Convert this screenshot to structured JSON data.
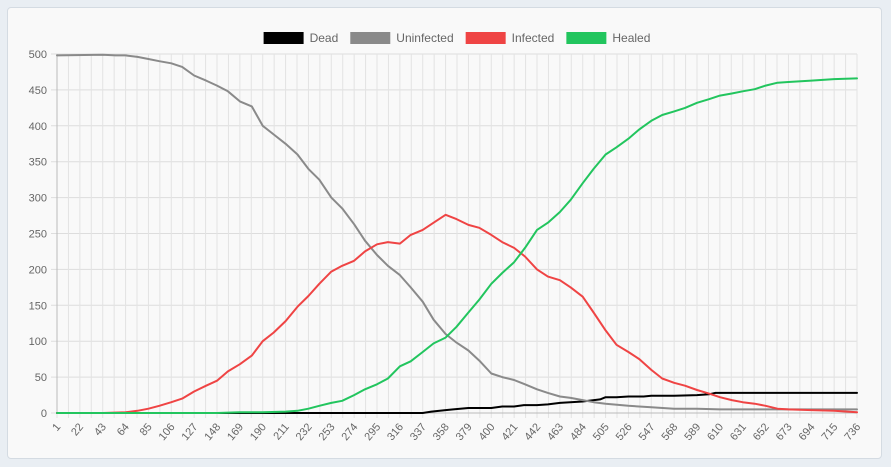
{
  "chart_data": {
    "type": "line",
    "xlabel": "",
    "ylabel": "",
    "ylim": [
      0,
      500
    ],
    "y_ticks": [
      0,
      50,
      100,
      150,
      200,
      250,
      300,
      350,
      400,
      450,
      500
    ],
    "x_range": [
      1,
      736
    ],
    "x_ticks": [
      "1",
      "22",
      "43",
      "64",
      "85",
      "106",
      "127",
      "148",
      "169",
      "190",
      "211",
      "232",
      "253",
      "274",
      "295",
      "316",
      "337",
      "358",
      "379",
      "400",
      "421",
      "442",
      "463",
      "484",
      "505",
      "526",
      "547",
      "568",
      "589",
      "610",
      "631",
      "652",
      "673",
      "694",
      "715",
      "736"
    ],
    "grid": true,
    "legend_position": "top",
    "series": [
      {
        "name": "Dead",
        "color": "#000000",
        "points": [
          [
            1,
            0
          ],
          [
            337,
            0
          ],
          [
            345,
            2
          ],
          [
            358,
            4
          ],
          [
            365,
            5
          ],
          [
            379,
            7
          ],
          [
            400,
            7
          ],
          [
            410,
            9
          ],
          [
            421,
            9
          ],
          [
            430,
            11
          ],
          [
            442,
            11
          ],
          [
            452,
            12
          ],
          [
            463,
            14
          ],
          [
            484,
            16
          ],
          [
            500,
            19
          ],
          [
            505,
            22
          ],
          [
            515,
            22
          ],
          [
            526,
            23
          ],
          [
            540,
            23
          ],
          [
            547,
            24
          ],
          [
            568,
            24
          ],
          [
            589,
            25
          ],
          [
            600,
            26
          ],
          [
            606,
            28
          ],
          [
            610,
            28
          ],
          [
            736,
            28
          ]
        ]
      },
      {
        "name": "Uninfected",
        "color": "#8a8a8a",
        "points": [
          [
            1,
            498
          ],
          [
            43,
            499
          ],
          [
            55,
            498
          ],
          [
            64,
            498
          ],
          [
            75,
            496
          ],
          [
            85,
            493
          ],
          [
            95,
            490
          ],
          [
            106,
            487
          ],
          [
            116,
            482
          ],
          [
            127,
            470
          ],
          [
            138,
            463
          ],
          [
            148,
            456
          ],
          [
            158,
            448
          ],
          [
            169,
            434
          ],
          [
            180,
            427
          ],
          [
            190,
            400
          ],
          [
            200,
            388
          ],
          [
            211,
            375
          ],
          [
            222,
            360
          ],
          [
            232,
            340
          ],
          [
            242,
            325
          ],
          [
            253,
            300
          ],
          [
            263,
            285
          ],
          [
            274,
            263
          ],
          [
            284,
            240
          ],
          [
            295,
            220
          ],
          [
            305,
            205
          ],
          [
            316,
            192
          ],
          [
            326,
            175
          ],
          [
            337,
            155
          ],
          [
            347,
            130
          ],
          [
            358,
            110
          ],
          [
            368,
            98
          ],
          [
            379,
            87
          ],
          [
            389,
            73
          ],
          [
            400,
            55
          ],
          [
            410,
            50
          ],
          [
            421,
            46
          ],
          [
            431,
            40
          ],
          [
            442,
            33
          ],
          [
            452,
            28
          ],
          [
            463,
            23
          ],
          [
            473,
            21
          ],
          [
            484,
            18
          ],
          [
            494,
            15
          ],
          [
            505,
            13
          ],
          [
            526,
            10
          ],
          [
            547,
            8
          ],
          [
            568,
            6
          ],
          [
            589,
            6
          ],
          [
            610,
            5
          ],
          [
            736,
            5
          ]
        ]
      },
      {
        "name": "Infected",
        "color": "#ef4444",
        "points": [
          [
            1,
            0
          ],
          [
            43,
            0
          ],
          [
            64,
            1
          ],
          [
            75,
            3
          ],
          [
            85,
            6
          ],
          [
            95,
            10
          ],
          [
            106,
            15
          ],
          [
            116,
            20
          ],
          [
            127,
            30
          ],
          [
            138,
            38
          ],
          [
            148,
            45
          ],
          [
            158,
            58
          ],
          [
            169,
            68
          ],
          [
            180,
            80
          ],
          [
            190,
            100
          ],
          [
            200,
            112
          ],
          [
            211,
            128
          ],
          [
            222,
            148
          ],
          [
            232,
            163
          ],
          [
            242,
            180
          ],
          [
            253,
            197
          ],
          [
            263,
            205
          ],
          [
            274,
            212
          ],
          [
            284,
            225
          ],
          [
            295,
            235
          ],
          [
            305,
            238
          ],
          [
            316,
            236
          ],
          [
            326,
            248
          ],
          [
            337,
            255
          ],
          [
            347,
            265
          ],
          [
            358,
            276
          ],
          [
            368,
            270
          ],
          [
            379,
            262
          ],
          [
            389,
            258
          ],
          [
            400,
            248
          ],
          [
            410,
            238
          ],
          [
            421,
            230
          ],
          [
            431,
            218
          ],
          [
            442,
            200
          ],
          [
            452,
            190
          ],
          [
            463,
            185
          ],
          [
            473,
            175
          ],
          [
            484,
            162
          ],
          [
            494,
            140
          ],
          [
            505,
            115
          ],
          [
            515,
            95
          ],
          [
            526,
            85
          ],
          [
            536,
            75
          ],
          [
            547,
            60
          ],
          [
            557,
            48
          ],
          [
            568,
            42
          ],
          [
            578,
            38
          ],
          [
            589,
            32
          ],
          [
            600,
            27
          ],
          [
            610,
            22
          ],
          [
            621,
            18
          ],
          [
            631,
            15
          ],
          [
            642,
            13
          ],
          [
            652,
            10
          ],
          [
            663,
            6
          ],
          [
            673,
            5
          ],
          [
            694,
            4
          ],
          [
            715,
            3
          ],
          [
            736,
            1
          ]
        ]
      },
      {
        "name": "Healed",
        "color": "#22c55e",
        "points": [
          [
            1,
            0
          ],
          [
            148,
            0
          ],
          [
            169,
            1
          ],
          [
            190,
            1
          ],
          [
            211,
            2
          ],
          [
            222,
            3
          ],
          [
            232,
            6
          ],
          [
            242,
            10
          ],
          [
            253,
            14
          ],
          [
            263,
            17
          ],
          [
            274,
            25
          ],
          [
            284,
            33
          ],
          [
            295,
            40
          ],
          [
            305,
            48
          ],
          [
            316,
            65
          ],
          [
            326,
            72
          ],
          [
            337,
            85
          ],
          [
            347,
            97
          ],
          [
            358,
            105
          ],
          [
            368,
            120
          ],
          [
            379,
            140
          ],
          [
            389,
            158
          ],
          [
            400,
            180
          ],
          [
            410,
            195
          ],
          [
            421,
            210
          ],
          [
            431,
            230
          ],
          [
            442,
            255
          ],
          [
            452,
            265
          ],
          [
            463,
            280
          ],
          [
            473,
            297
          ],
          [
            484,
            320
          ],
          [
            494,
            340
          ],
          [
            505,
            360
          ],
          [
            515,
            370
          ],
          [
            526,
            382
          ],
          [
            536,
            395
          ],
          [
            547,
            407
          ],
          [
            557,
            415
          ],
          [
            568,
            420
          ],
          [
            578,
            425
          ],
          [
            589,
            432
          ],
          [
            600,
            437
          ],
          [
            610,
            442
          ],
          [
            621,
            445
          ],
          [
            631,
            448
          ],
          [
            642,
            451
          ],
          [
            652,
            456
          ],
          [
            663,
            460
          ],
          [
            673,
            461
          ],
          [
            694,
            463
          ],
          [
            715,
            465
          ],
          [
            736,
            466
          ]
        ]
      }
    ]
  }
}
